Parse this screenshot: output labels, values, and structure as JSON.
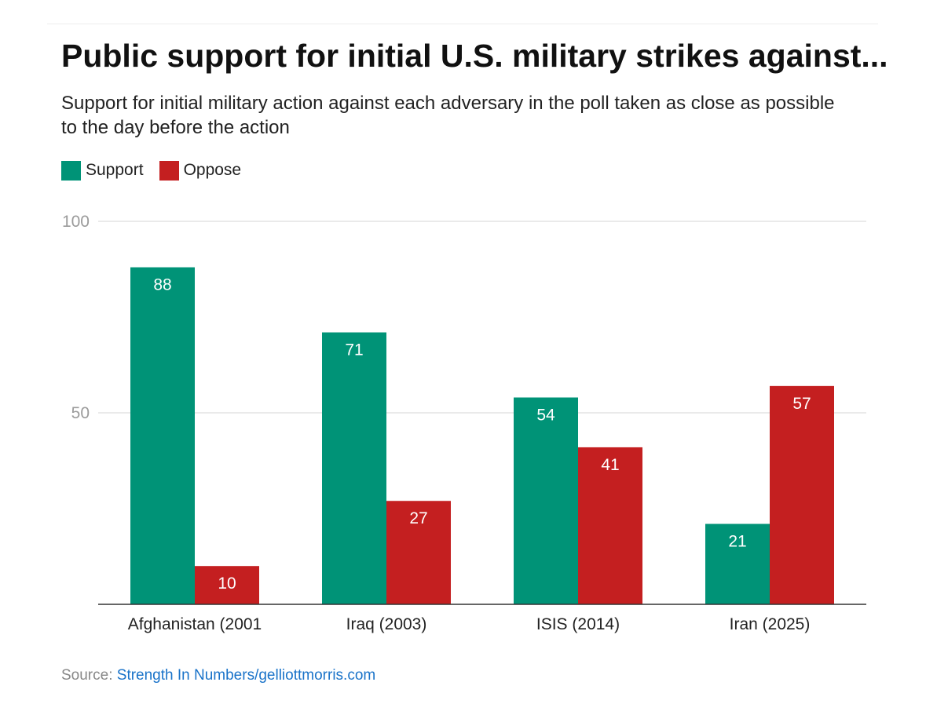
{
  "chart_data": {
    "type": "bar",
    "title": "Public support for initial U.S. military strikes against...",
    "subtitle": "Support for initial military action against each adversary in the poll taken as close as possible to the day before the action",
    "categories": [
      "Afghanistan (2001",
      "Iraq (2003)",
      "ISIS (2014)",
      "Iran (2025)"
    ],
    "series": [
      {
        "name": "Support",
        "color": "#009377",
        "values": [
          88,
          71,
          54,
          21
        ]
      },
      {
        "name": "Oppose",
        "color": "#c41f20",
        "values": [
          10,
          27,
          41,
          57
        ]
      }
    ],
    "yticks": [
      {
        "value": 50,
        "label": "50"
      },
      {
        "value": 100,
        "label": "100"
      }
    ],
    "ylim": [
      0,
      100
    ],
    "xlabel": "",
    "ylabel": "",
    "grid": true,
    "legend_position": "top-left",
    "data_labels": true
  },
  "source": {
    "prefix": "Source: ",
    "link_text": "Strength In Numbers/gelliottmorris.com"
  }
}
